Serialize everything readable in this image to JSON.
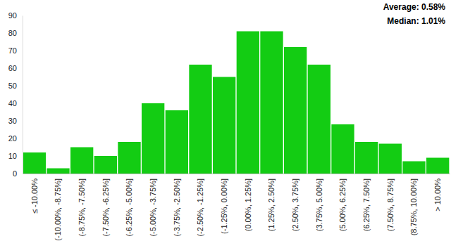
{
  "chart_data": {
    "type": "bar",
    "annotations": [
      "Average: 0.58%",
      "Median: 1.01%"
    ],
    "categories": [
      "≤ -10.00%",
      "(-10.00%, -8.75%]",
      "(-8.75%, -7.50%]",
      "(-7.50%, -6.25%]",
      "(-6.25%, -5.00%]",
      "(-5.00%, -3.75%]",
      "(-3.75%, -2.50%]",
      "(-2.50%, -1.25%]",
      "(-1.25%, 0.00%]",
      "(0.00%, 1.25%]",
      "(1.25%, 2.50%]",
      "(2.50%, 3.75%]",
      "(3.75%, 5.00%]",
      "(5.00%, 6.25%]",
      "(6.25%, 7.50%]",
      "(7.50%, 8.75%]",
      "(8.75%, 10.00%]",
      "> 10.00%"
    ],
    "values": [
      12,
      3,
      15,
      10,
      18,
      40,
      36,
      62,
      55,
      81,
      81,
      72,
      62,
      28,
      18,
      17,
      7,
      9
    ],
    "color": "#13cc13",
    "ylim": [
      0,
      90
    ],
    "yticks": [
      0,
      10,
      20,
      30,
      40,
      50,
      60,
      70,
      80,
      90
    ],
    "grid": false
  }
}
